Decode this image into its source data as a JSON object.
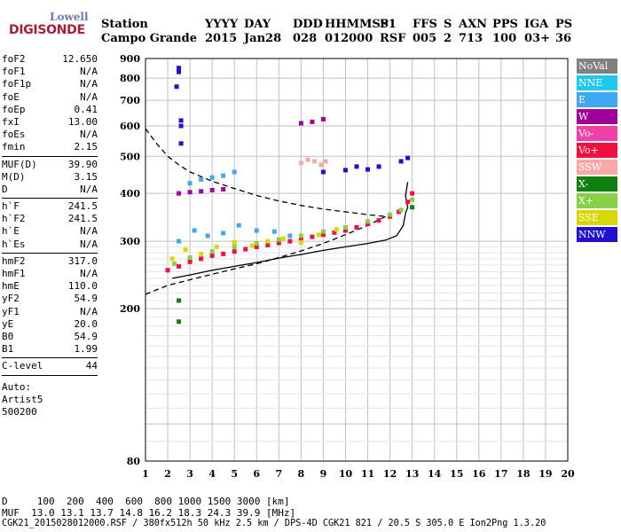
{
  "logo": {
    "line1": "Lowell",
    "line2": "DIGISONDE"
  },
  "header": {
    "row1": [
      "Station",
      "YYYY",
      "DAY",
      "DDD",
      "HHMMSS",
      "P1",
      "FFS",
      "S",
      "AXN",
      "PPS",
      "IGA",
      "PS"
    ],
    "row2": [
      "Campo Grande",
      "2015",
      "Jan28",
      "028",
      "012000",
      "RSF",
      "005",
      "2",
      "713",
      "100",
      "03+",
      "36"
    ]
  },
  "params": {
    "group1": [
      [
        "foF2",
        "12.650"
      ],
      [
        "foF1",
        "N/A"
      ],
      [
        "foF1p",
        "N/A"
      ],
      [
        "foE",
        "N/A"
      ],
      [
        "foEp",
        "0.41"
      ],
      [
        "fxI",
        "13.00"
      ],
      [
        "foEs",
        "N/A"
      ],
      [
        "fmin",
        "2.15"
      ]
    ],
    "group2": [
      [
        "MUF(D)",
        "39.90"
      ],
      [
        "M(D)",
        "3.15"
      ],
      [
        "D",
        "N/A"
      ]
    ],
    "group3": [
      [
        "h`F",
        "241.5"
      ],
      [
        "h`F2",
        "241.5"
      ],
      [
        "h`E",
        "N/A"
      ],
      [
        "h`Es",
        "N/A"
      ]
    ],
    "group4": [
      [
        "hmF2",
        "317.0"
      ],
      [
        "hmF1",
        "N/A"
      ],
      [
        "hmE",
        "110.0"
      ],
      [
        "yF2",
        "54.9"
      ],
      [
        "yF1",
        "N/A"
      ],
      [
        "yE",
        "20.0"
      ],
      [
        "B0",
        "54.9"
      ],
      [
        "B1",
        "1.99"
      ]
    ],
    "group5": [
      [
        "C-level",
        "44"
      ]
    ],
    "auto": [
      "Auto:",
      "Artist5",
      "500200"
    ]
  },
  "bottom": {
    "line1": "D     100  200  400  600  800 1000 1500 3000 [km]",
    "line2": "MUF  13.0 13.1 13.7 14.8 16.2 18.3 24.3 39.9 [MHz]",
    "line3": "CGK21_2015028012000.RSF / 380fx512h 50 kHz 2.5 km / DPS-4D CGK21 821 / 20.5 S 305.0 E Ion2Png 1.3.20"
  },
  "legend": [
    {
      "label": "NoVal",
      "color": "#808080"
    },
    {
      "label": "NNE",
      "color": "#20c8f0"
    },
    {
      "label": "E",
      "color": "#40a8f0"
    },
    {
      "label": "W",
      "color": "#a0009a"
    },
    {
      "label": "Vo-",
      "color": "#f040a8"
    },
    {
      "label": "Vo+",
      "color": "#f01040"
    },
    {
      "label": "SSW",
      "color": "#f8a8a8"
    },
    {
      "label": "X-",
      "color": "#108010"
    },
    {
      "label": "X+",
      "color": "#88d048"
    },
    {
      "label": "SSE",
      "color": "#d8d800"
    },
    {
      "label": "NNW",
      "color": "#2010d0"
    }
  ],
  "chart_data": {
    "type": "scatter",
    "xlabel": "",
    "ylabel": "",
    "xlim": [
      1,
      20
    ],
    "ylim": [
      80,
      900
    ],
    "y_scale": "log",
    "x_ticks": [
      1,
      2,
      3,
      4,
      5,
      6,
      7,
      8,
      9,
      10,
      11,
      12,
      13,
      14,
      15,
      16,
      17,
      18,
      19,
      20
    ],
    "y_ticks": [
      80,
      200,
      300,
      400,
      500,
      600,
      700,
      800,
      900
    ],
    "grid": true,
    "series": [
      {
        "name": "Vo+",
        "color": "#f01040",
        "points": [
          [
            2.0,
            252
          ],
          [
            2.5,
            258
          ],
          [
            3.0,
            265
          ],
          [
            3.5,
            270
          ],
          [
            4.0,
            275
          ],
          [
            4.5,
            278
          ],
          [
            5.0,
            282
          ],
          [
            5.5,
            286
          ],
          [
            6.0,
            290
          ],
          [
            6.5,
            293
          ],
          [
            7.0,
            297
          ],
          [
            7.5,
            300
          ],
          [
            8.0,
            304
          ],
          [
            8.5,
            308
          ],
          [
            9.0,
            312
          ],
          [
            9.5,
            316
          ],
          [
            10.0,
            320
          ],
          [
            10.5,
            326
          ],
          [
            11.0,
            333
          ],
          [
            11.5,
            340
          ],
          [
            12.0,
            348
          ],
          [
            12.4,
            358
          ],
          [
            12.8,
            380
          ],
          [
            13.0,
            400
          ]
        ]
      },
      {
        "name": "X+",
        "color": "#88d048",
        "points": [
          [
            2.3,
            262
          ],
          [
            3.0,
            272
          ],
          [
            4.0,
            282
          ],
          [
            5.0,
            290
          ],
          [
            6.0,
            296
          ],
          [
            7.0,
            303
          ],
          [
            8.0,
            310
          ],
          [
            9.0,
            318
          ],
          [
            10.0,
            326
          ],
          [
            11.0,
            338
          ],
          [
            12.0,
            352
          ],
          [
            12.5,
            362
          ],
          [
            13.0,
            385
          ]
        ]
      },
      {
        "name": "SSE",
        "color": "#d8d800",
        "points": [
          [
            2.2,
            270
          ],
          [
            2.8,
            285
          ],
          [
            3.5,
            278
          ],
          [
            4.2,
            290
          ],
          [
            5.0,
            298
          ],
          [
            5.8,
            292
          ],
          [
            6.5,
            300
          ],
          [
            7.2,
            305
          ],
          [
            8.0,
            298
          ],
          [
            8.8,
            312
          ],
          [
            9.6,
            322
          ]
        ]
      },
      {
        "name": "E",
        "color": "#40a8f0",
        "points": [
          [
            2.5,
            300
          ],
          [
            3.2,
            320
          ],
          [
            3.8,
            310
          ],
          [
            4.5,
            315
          ],
          [
            5.2,
            330
          ],
          [
            6.0,
            320
          ],
          [
            6.8,
            318
          ],
          [
            7.5,
            310
          ],
          [
            3.0,
            425
          ],
          [
            3.5,
            435
          ],
          [
            4.0,
            440
          ],
          [
            4.5,
            445
          ],
          [
            5.0,
            455
          ]
        ]
      },
      {
        "name": "W",
        "color": "#a0009a",
        "points": [
          [
            2.5,
            400
          ],
          [
            3.0,
            403
          ],
          [
            3.5,
            405
          ],
          [
            4.0,
            408
          ],
          [
            4.5,
            410
          ],
          [
            8.0,
            610
          ],
          [
            8.5,
            615
          ],
          [
            9.0,
            625
          ]
        ]
      },
      {
        "name": "NNW",
        "color": "#2010d0",
        "points": [
          [
            2.4,
            760
          ],
          [
            2.5,
            830
          ],
          [
            2.5,
            850
          ],
          [
            2.6,
            600
          ],
          [
            2.6,
            540
          ],
          [
            2.6,
            620
          ],
          [
            9.0,
            455
          ],
          [
            10.0,
            460
          ],
          [
            10.5,
            470
          ],
          [
            11.0,
            462
          ],
          [
            11.5,
            470
          ],
          [
            12.5,
            485
          ],
          [
            12.8,
            495
          ]
        ]
      },
      {
        "name": "SSW",
        "color": "#f8a8a8",
        "points": [
          [
            8.0,
            480
          ],
          [
            8.3,
            490
          ],
          [
            8.6,
            485
          ],
          [
            8.9,
            475
          ],
          [
            9.1,
            485
          ]
        ]
      },
      {
        "name": "X-",
        "color": "#108010",
        "points": [
          [
            2.5,
            185
          ],
          [
            2.5,
            210
          ],
          [
            13.0,
            368
          ]
        ]
      }
    ],
    "lines": [
      {
        "type": "profile_dashed",
        "points": [
          [
            1.0,
            590
          ],
          [
            1.5,
            540
          ],
          [
            2.0,
            500
          ],
          [
            2.5,
            475
          ],
          [
            3.0,
            455
          ],
          [
            4.0,
            430
          ],
          [
            5.0,
            412
          ],
          [
            6.0,
            395
          ],
          [
            7.0,
            382
          ],
          [
            8.0,
            372
          ],
          [
            9.0,
            364
          ],
          [
            10.0,
            358
          ],
          [
            11.0,
            352
          ],
          [
            11.8,
            348
          ]
        ]
      },
      {
        "type": "profile_dashed",
        "points": [
          [
            1.0,
            218
          ],
          [
            1.5,
            224
          ],
          [
            2.0,
            230
          ],
          [
            2.5,
            234
          ],
          [
            3.0,
            238
          ],
          [
            4.0,
            246
          ],
          [
            5.0,
            254
          ],
          [
            6.0,
            262
          ],
          [
            7.0,
            272
          ],
          [
            8.0,
            283
          ],
          [
            9.0,
            296
          ],
          [
            10.0,
            312
          ],
          [
            11.0,
            330
          ],
          [
            11.8,
            348
          ]
        ]
      },
      {
        "type": "profile_solid",
        "points": [
          [
            2.2,
            240
          ],
          [
            3.0,
            245
          ],
          [
            4.0,
            252
          ],
          [
            5.0,
            258
          ],
          [
            6.0,
            264
          ],
          [
            7.0,
            271
          ],
          [
            8.0,
            277
          ],
          [
            9.0,
            284
          ],
          [
            10.0,
            290
          ],
          [
            11.0,
            296
          ],
          [
            11.8,
            302
          ],
          [
            12.3,
            310
          ],
          [
            12.6,
            330
          ],
          [
            12.7,
            355
          ],
          [
            12.8,
            368
          ],
          [
            12.7,
            395
          ],
          [
            12.8,
            428
          ]
        ]
      }
    ]
  }
}
